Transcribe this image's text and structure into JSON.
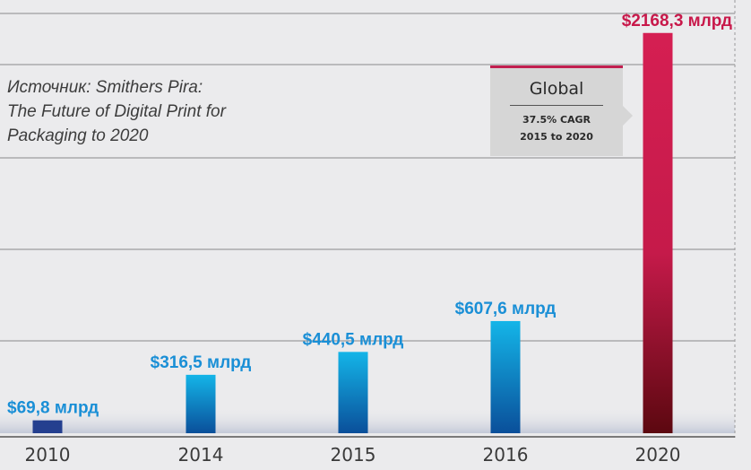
{
  "chart_data": {
    "type": "bar",
    "categories": [
      "2010",
      "2014",
      "2015",
      "2016",
      "2020"
    ],
    "values": [
      69.8,
      316.5,
      440.5,
      607.6,
      2168.3
    ],
    "data_labels": [
      "$69,8 млрд",
      "$316,5 млрд",
      "$440,5 млрд",
      "$607,6 млрд",
      "$2168,3 млрд"
    ],
    "ylim": [
      0,
      2240
    ],
    "grid": true,
    "bar_colors": {
      "gradient_top": "#14b5e8",
      "gradient_bottom": "#0a4f9a",
      "first_bar": "#243f8f",
      "highlight_top": "#d51f52",
      "highlight_bottom": "#5c0810"
    },
    "label_colors": {
      "normal": "#1a8fd6",
      "highlight": "#c8184a"
    }
  },
  "source_note": {
    "lines": [
      "Источник: Smithers Pira:",
      "The Future of Digital Print for",
      "Packaging to 2020"
    ]
  },
  "callout": {
    "title": "Global",
    "line1": "37.5% CAGR",
    "line2": "2015 to 2020"
  }
}
